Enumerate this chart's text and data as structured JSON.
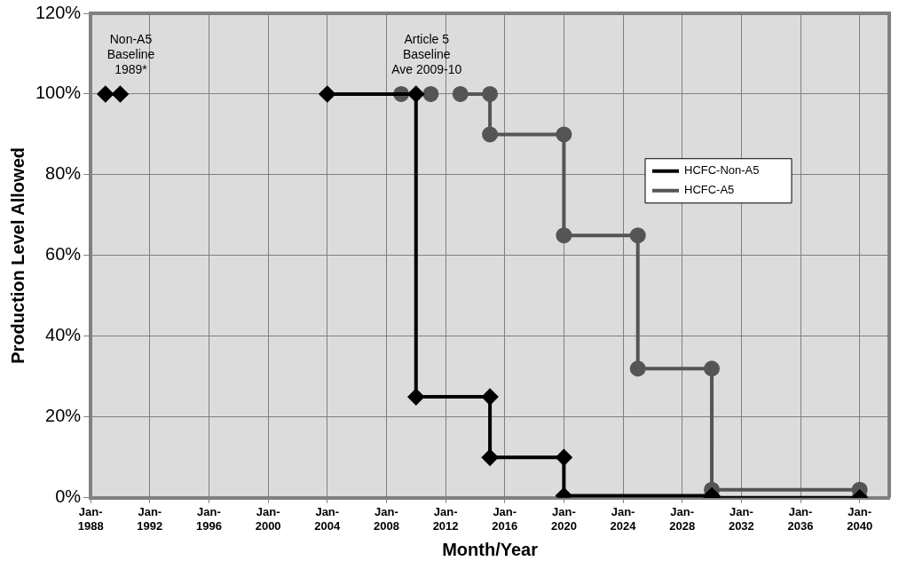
{
  "chart_data": {
    "type": "line",
    "xlabel": "Month/Year",
    "ylabel": "Production Level Allowed",
    "xlim": [
      "1988-01",
      "2042-01"
    ],
    "xticks": [
      {
        "value": "1988-01",
        "label": "Jan-1988"
      },
      {
        "value": "1992-01",
        "label": "Jan-1992"
      },
      {
        "value": "1996-01",
        "label": "Jan-1996"
      },
      {
        "value": "2000-01",
        "label": "Jan-2000"
      },
      {
        "value": "2004-01",
        "label": "Jan-2004"
      },
      {
        "value": "2008-01",
        "label": "Jan-2008"
      },
      {
        "value": "2012-01",
        "label": "Jan-2012"
      },
      {
        "value": "2016-01",
        "label": "Jan-2016"
      },
      {
        "value": "2020-01",
        "label": "Jan-2020"
      },
      {
        "value": "2024-01",
        "label": "Jan-2024"
      },
      {
        "value": "2028-01",
        "label": "Jan-2028"
      },
      {
        "value": "2032-01",
        "label": "Jan-2032"
      },
      {
        "value": "2036-01",
        "label": "Jan-2036"
      },
      {
        "value": "2040-01",
        "label": "Jan-2040"
      }
    ],
    "ylim": [
      0,
      120
    ],
    "yticks": [
      {
        "value": 0,
        "label": "0%"
      },
      {
        "value": 20,
        "label": "20%"
      },
      {
        "value": 40,
        "label": "40%"
      },
      {
        "value": 60,
        "label": "60%"
      },
      {
        "value": 80,
        "label": "80%"
      },
      {
        "value": 100,
        "label": "100%"
      },
      {
        "value": 120,
        "label": "120%"
      }
    ],
    "grid": true,
    "legend": "right",
    "line_style": "solid",
    "series": [
      {
        "name": "HCFC-Non-A5",
        "color": "#000000",
        "marker": "diamond",
        "x": [
          "1989-01",
          "1990-01",
          "1997-01",
          "2004-01",
          "2010-01",
          "2010-01",
          "2015-01",
          "2015-01",
          "2020-01",
          "2020-01",
          "2030-01",
          "2030-01",
          "2040-01"
        ],
        "values": [
          100,
          100,
          null,
          100,
          100,
          25,
          25,
          10,
          10,
          0.5,
          0.5,
          0,
          0
        ]
      },
      {
        "name": "HCFC-A5",
        "color": "#555555",
        "marker": "circle",
        "x": [
          "2009-01",
          "2011-01",
          "2012-01",
          "2013-01",
          "2015-01",
          "2015-01",
          "2020-01",
          "2020-01",
          "2025-01",
          "2025-01",
          "2030-01",
          "2030-01",
          "2040-01",
          "2040-01"
        ],
        "values": [
          100,
          100,
          null,
          100,
          100,
          90,
          90,
          65,
          65,
          32,
          32,
          2,
          2,
          0
        ]
      }
    ],
    "annotations": [
      {
        "text": "Non-A5\nBaseline\n1989*",
        "x": "1990-01",
        "y": 100
      },
      {
        "text": "Article 5\nBaseline\nAve 2009-10",
        "x": "2010-01",
        "y": 100
      }
    ]
  }
}
